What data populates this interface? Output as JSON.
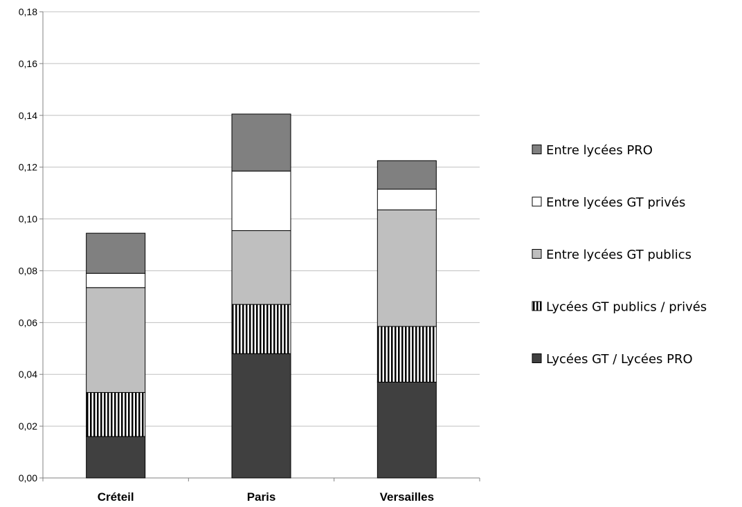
{
  "chart_data": {
    "type": "bar",
    "stacked": true,
    "categories": [
      "Créteil",
      "Paris",
      "Versailles"
    ],
    "series": [
      {
        "name": "Lycées GT / Lycées PRO",
        "values": [
          0.016,
          0.048,
          0.037
        ],
        "color": "#404040",
        "pattern": "solid"
      },
      {
        "name": "Lycées GT publics / privés",
        "values": [
          0.017,
          0.019,
          0.0215
        ],
        "color": "#000000",
        "pattern": "vertical-stripes"
      },
      {
        "name": "Entre lycées GT publics",
        "values": [
          0.0405,
          0.0285,
          0.045
        ],
        "color": "#bfbfbf",
        "pattern": "solid"
      },
      {
        "name": "Entre lycées GT privés",
        "values": [
          0.0055,
          0.023,
          0.008
        ],
        "color": "#ffffff",
        "pattern": "solid"
      },
      {
        "name": "Entre lycées PRO",
        "values": [
          0.0155,
          0.022,
          0.011
        ],
        "color": "#808080",
        "pattern": "solid"
      }
    ],
    "y_ticks": [
      "0,00",
      "0,02",
      "0,04",
      "0,06",
      "0,08",
      "0,10",
      "0,12",
      "0,14",
      "0,16",
      "0,18"
    ],
    "ylim": [
      0,
      0.18
    ],
    "grid": true,
    "legend_position": "right",
    "legend_order": [
      "Entre lycées PRO",
      "Entre lycées GT privés",
      "Entre lycées GT publics",
      "Lycées GT publics / privés",
      "Lycées GT / Lycées PRO"
    ]
  }
}
